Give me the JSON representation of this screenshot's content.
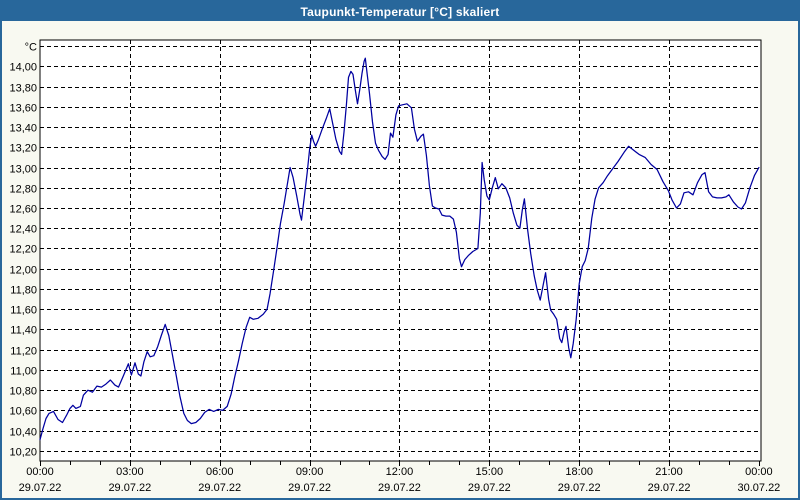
{
  "window": {
    "title": "Taupunkt-Temperatur [°C] skaliert"
  },
  "colors": {
    "titlebar_bg": "#28679B",
    "titlebar_text": "#FFFFFF",
    "window_border": "#28679B",
    "window_bg": "#F8F9F1",
    "plot_bg": "#FFFFFF",
    "grid": "#000000",
    "axis": "#000000",
    "series_line": "#0000A0"
  },
  "chart_data": {
    "type": "line",
    "title": "Taupunkt-Temperatur [°C] skaliert",
    "xlabel": "",
    "ylabel": "°C",
    "grid": "dashed",
    "legend": "none",
    "ylim": [
      10.1,
      14.26
    ],
    "xlim_hours": [
      0,
      24.07
    ],
    "x_major_step_hours": 3,
    "x_minor_step_hours": 1,
    "y_ticks": [
      {
        "v": 14.2,
        "label": "°C"
      },
      {
        "v": 14.0,
        "label": "14,00"
      },
      {
        "v": 13.8,
        "label": "13,80"
      },
      {
        "v": 13.6,
        "label": "13,60"
      },
      {
        "v": 13.4,
        "label": "13,40"
      },
      {
        "v": 13.2,
        "label": "13,20"
      },
      {
        "v": 13.0,
        "label": "13,00"
      },
      {
        "v": 12.8,
        "label": "12,80"
      },
      {
        "v": 12.6,
        "label": "12,60"
      },
      {
        "v": 12.4,
        "label": "12,40"
      },
      {
        "v": 12.2,
        "label": "12,20"
      },
      {
        "v": 12.0,
        "label": "12,00"
      },
      {
        "v": 11.8,
        "label": "11,80"
      },
      {
        "v": 11.6,
        "label": "11,60"
      },
      {
        "v": 11.4,
        "label": "11,40"
      },
      {
        "v": 11.2,
        "label": "11,20"
      },
      {
        "v": 11.0,
        "label": "11,00"
      },
      {
        "v": 10.8,
        "label": "10,80"
      },
      {
        "v": 10.6,
        "label": "10,60"
      },
      {
        "v": 10.4,
        "label": "10,40"
      },
      {
        "v": 10.2,
        "label": "10,20"
      }
    ],
    "x_ticks": [
      {
        "h": 0,
        "time": "00:00",
        "date": "29.07.22"
      },
      {
        "h": 3,
        "time": "03:00",
        "date": "29.07.22"
      },
      {
        "h": 6,
        "time": "06:00",
        "date": "29.07.22"
      },
      {
        "h": 9,
        "time": "09:00",
        "date": "29.07.22"
      },
      {
        "h": 12,
        "time": "12:00",
        "date": "29.07.22"
      },
      {
        "h": 15,
        "time": "15:00",
        "date": "29.07.22"
      },
      {
        "h": 18,
        "time": "18:00",
        "date": "29.07.22"
      },
      {
        "h": 21,
        "time": "21:00",
        "date": "29.07.22"
      },
      {
        "h": 24,
        "time": "00:00",
        "date": "30.07.22"
      }
    ],
    "series": [
      {
        "name": "Taupunkt-Temperatur",
        "color": "#0000A0",
        "points": [
          [
            0.0,
            10.31
          ],
          [
            0.1,
            10.42
          ],
          [
            0.2,
            10.52
          ],
          [
            0.3,
            10.57
          ],
          [
            0.45,
            10.59
          ],
          [
            0.6,
            10.51
          ],
          [
            0.75,
            10.48
          ],
          [
            0.9,
            10.56
          ],
          [
            1.0,
            10.62
          ],
          [
            1.1,
            10.65
          ],
          [
            1.2,
            10.62
          ],
          [
            1.35,
            10.64
          ],
          [
            1.45,
            10.75
          ],
          [
            1.6,
            10.8
          ],
          [
            1.75,
            10.78
          ],
          [
            1.9,
            10.84
          ],
          [
            2.05,
            10.83
          ],
          [
            2.2,
            10.86
          ],
          [
            2.35,
            10.9
          ],
          [
            2.5,
            10.85
          ],
          [
            2.62,
            10.83
          ],
          [
            2.78,
            10.94
          ],
          [
            2.95,
            11.06
          ],
          [
            3.05,
            10.95
          ],
          [
            3.17,
            11.07
          ],
          [
            3.28,
            10.96
          ],
          [
            3.37,
            10.94
          ],
          [
            3.47,
            11.08
          ],
          [
            3.58,
            11.18
          ],
          [
            3.68,
            11.13
          ],
          [
            3.8,
            11.14
          ],
          [
            3.93,
            11.23
          ],
          [
            4.05,
            11.34
          ],
          [
            4.18,
            11.45
          ],
          [
            4.3,
            11.34
          ],
          [
            4.42,
            11.15
          ],
          [
            4.55,
            10.94
          ],
          [
            4.67,
            10.74
          ],
          [
            4.8,
            10.57
          ],
          [
            4.92,
            10.5
          ],
          [
            5.05,
            10.47
          ],
          [
            5.2,
            10.48
          ],
          [
            5.35,
            10.52
          ],
          [
            5.5,
            10.58
          ],
          [
            5.65,
            10.61
          ],
          [
            5.8,
            10.59
          ],
          [
            5.95,
            10.61
          ],
          [
            6.1,
            10.6
          ],
          [
            6.25,
            10.64
          ],
          [
            6.38,
            10.76
          ],
          [
            6.5,
            10.93
          ],
          [
            6.62,
            11.08
          ],
          [
            6.75,
            11.26
          ],
          [
            6.88,
            11.42
          ],
          [
            7.0,
            11.52
          ],
          [
            7.12,
            11.5
          ],
          [
            7.28,
            11.51
          ],
          [
            7.45,
            11.55
          ],
          [
            7.58,
            11.6
          ],
          [
            7.68,
            11.75
          ],
          [
            7.8,
            11.98
          ],
          [
            7.92,
            12.22
          ],
          [
            8.03,
            12.45
          ],
          [
            8.15,
            12.64
          ],
          [
            8.25,
            12.82
          ],
          [
            8.35,
            13.0
          ],
          [
            8.45,
            12.9
          ],
          [
            8.57,
            12.72
          ],
          [
            8.68,
            12.54
          ],
          [
            8.73,
            12.48
          ],
          [
            8.82,
            12.7
          ],
          [
            8.92,
            12.95
          ],
          [
            9.0,
            13.18
          ],
          [
            9.07,
            13.32
          ],
          [
            9.13,
            13.26
          ],
          [
            9.2,
            13.21
          ],
          [
            9.3,
            13.28
          ],
          [
            9.42,
            13.38
          ],
          [
            9.55,
            13.48
          ],
          [
            9.67,
            13.58
          ],
          [
            9.78,
            13.42
          ],
          [
            9.88,
            13.28
          ],
          [
            10.0,
            13.16
          ],
          [
            10.07,
            13.13
          ],
          [
            10.15,
            13.35
          ],
          [
            10.23,
            13.62
          ],
          [
            10.3,
            13.89
          ],
          [
            10.38,
            13.95
          ],
          [
            10.45,
            13.92
          ],
          [
            10.53,
            13.76
          ],
          [
            10.6,
            13.63
          ],
          [
            10.68,
            13.78
          ],
          [
            10.75,
            13.93
          ],
          [
            10.82,
            14.05
          ],
          [
            10.86,
            14.08
          ],
          [
            10.92,
            13.93
          ],
          [
            11.0,
            13.73
          ],
          [
            11.1,
            13.45
          ],
          [
            11.2,
            13.24
          ],
          [
            11.3,
            13.17
          ],
          [
            11.42,
            13.11
          ],
          [
            11.52,
            13.08
          ],
          [
            11.62,
            13.13
          ],
          [
            11.7,
            13.34
          ],
          [
            11.78,
            13.3
          ],
          [
            11.88,
            13.52
          ],
          [
            11.97,
            13.61
          ],
          [
            12.1,
            13.62
          ],
          [
            12.25,
            13.63
          ],
          [
            12.4,
            13.59
          ],
          [
            12.5,
            13.38
          ],
          [
            12.6,
            13.26
          ],
          [
            12.72,
            13.31
          ],
          [
            12.8,
            13.33
          ],
          [
            12.9,
            13.12
          ],
          [
            13.0,
            12.82
          ],
          [
            13.1,
            12.62
          ],
          [
            13.2,
            12.6
          ],
          [
            13.32,
            12.59
          ],
          [
            13.42,
            12.53
          ],
          [
            13.55,
            12.52
          ],
          [
            13.68,
            12.52
          ],
          [
            13.8,
            12.49
          ],
          [
            13.9,
            12.36
          ],
          [
            14.0,
            12.1
          ],
          [
            14.07,
            12.02
          ],
          [
            14.18,
            12.09
          ],
          [
            14.3,
            12.13
          ],
          [
            14.45,
            12.17
          ],
          [
            14.62,
            12.2
          ],
          [
            14.7,
            12.55
          ],
          [
            14.76,
            13.05
          ],
          [
            14.83,
            12.88
          ],
          [
            14.92,
            12.72
          ],
          [
            15.0,
            12.68
          ],
          [
            15.1,
            12.8
          ],
          [
            15.2,
            12.9
          ],
          [
            15.3,
            12.79
          ],
          [
            15.42,
            12.84
          ],
          [
            15.55,
            12.8
          ],
          [
            15.68,
            12.7
          ],
          [
            15.8,
            12.55
          ],
          [
            15.92,
            12.43
          ],
          [
            16.02,
            12.4
          ],
          [
            16.1,
            12.58
          ],
          [
            16.17,
            12.69
          ],
          [
            16.28,
            12.38
          ],
          [
            16.38,
            12.15
          ],
          [
            16.5,
            11.93
          ],
          [
            16.6,
            11.79
          ],
          [
            16.7,
            11.69
          ],
          [
            16.8,
            11.84
          ],
          [
            16.88,
            11.96
          ],
          [
            16.98,
            11.7
          ],
          [
            17.05,
            11.59
          ],
          [
            17.15,
            11.55
          ],
          [
            17.25,
            11.5
          ],
          [
            17.35,
            11.31
          ],
          [
            17.42,
            11.27
          ],
          [
            17.5,
            11.38
          ],
          [
            17.56,
            11.43
          ],
          [
            17.65,
            11.22
          ],
          [
            17.72,
            11.12
          ],
          [
            17.8,
            11.26
          ],
          [
            17.9,
            11.5
          ],
          [
            18.0,
            11.85
          ],
          [
            18.1,
            12.02
          ],
          [
            18.2,
            12.08
          ],
          [
            18.3,
            12.2
          ],
          [
            18.42,
            12.5
          ],
          [
            18.53,
            12.69
          ],
          [
            18.65,
            12.8
          ],
          [
            18.8,
            12.85
          ],
          [
            18.95,
            12.92
          ],
          [
            19.1,
            12.98
          ],
          [
            19.3,
            13.06
          ],
          [
            19.5,
            13.15
          ],
          [
            19.65,
            13.21
          ],
          [
            19.82,
            13.17
          ],
          [
            20.0,
            13.13
          ],
          [
            20.2,
            13.1
          ],
          [
            20.4,
            13.03
          ],
          [
            20.6,
            12.98
          ],
          [
            20.8,
            12.86
          ],
          [
            20.98,
            12.77
          ],
          [
            21.1,
            12.68
          ],
          [
            21.25,
            12.6
          ],
          [
            21.38,
            12.64
          ],
          [
            21.5,
            12.75
          ],
          [
            21.65,
            12.76
          ],
          [
            21.8,
            12.73
          ],
          [
            21.95,
            12.85
          ],
          [
            22.1,
            12.93
          ],
          [
            22.2,
            12.95
          ],
          [
            22.32,
            12.76
          ],
          [
            22.45,
            12.71
          ],
          [
            22.6,
            12.7
          ],
          [
            22.75,
            12.7
          ],
          [
            22.9,
            12.71
          ],
          [
            23.0,
            12.73
          ],
          [
            23.15,
            12.66
          ],
          [
            23.3,
            12.61
          ],
          [
            23.42,
            12.59
          ],
          [
            23.55,
            12.65
          ],
          [
            23.7,
            12.8
          ],
          [
            23.85,
            12.92
          ],
          [
            24.0,
            13.0
          ]
        ]
      }
    ]
  }
}
